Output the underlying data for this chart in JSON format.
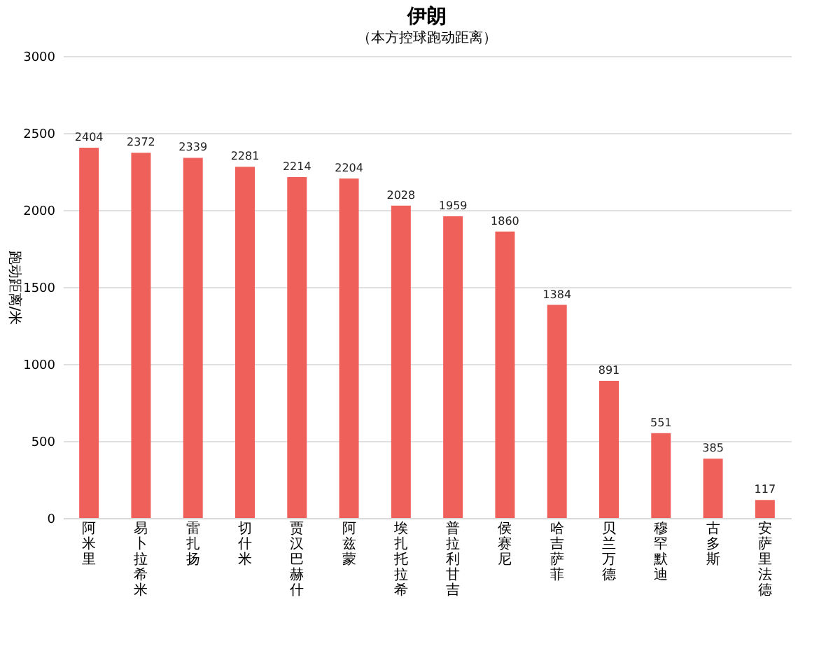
{
  "chart_data": {
    "type": "bar",
    "title": "伊朗",
    "subtitle": "（本方控球跑动距离）",
    "ylabel": "跑动距离/米",
    "categories": [
      "阿米里",
      "易卜拉希米",
      "雷扎扬",
      "切什米",
      "贾汉巴赫什",
      "阿兹蒙",
      "埃扎托拉希",
      "普拉利甘吉",
      "侯赛尼",
      "哈吉萨菲",
      "贝兰万德",
      "穆罕默迪",
      "古多斯",
      "安萨里法德"
    ],
    "values": [
      2404,
      2372,
      2339,
      2281,
      2214,
      2204,
      2028,
      1959,
      1860,
      1384,
      891,
      551,
      385,
      117
    ],
    "color": "#f0605a",
    "ylim": [
      0,
      3000
    ],
    "yticks": [
      0,
      500,
      1000,
      1500,
      2000,
      2500,
      3000
    ],
    "grid": "y",
    "data_labels": true
  }
}
